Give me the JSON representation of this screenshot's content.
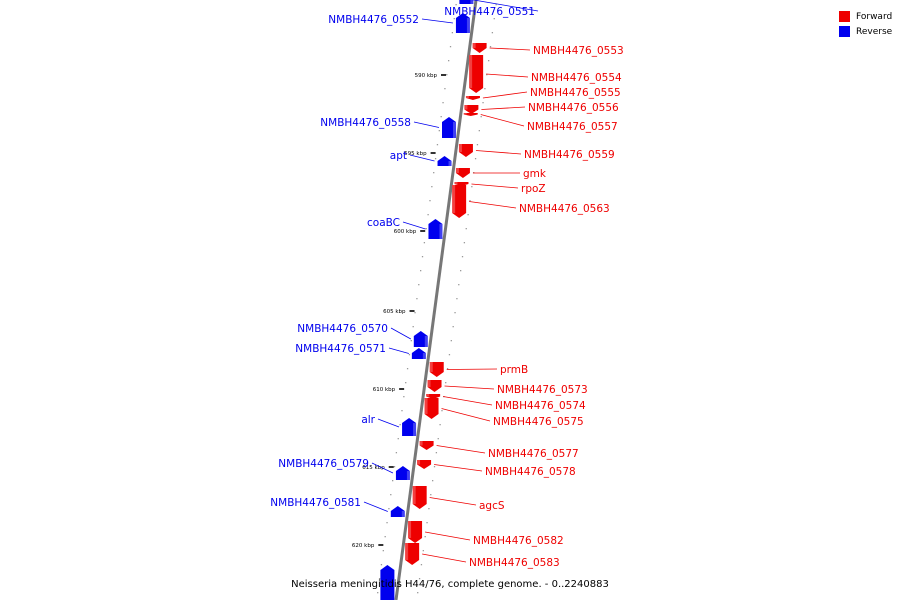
{
  "caption": "Neisseria meningitidis H44/76, complete genome. - 0..2240883",
  "legend": [
    {
      "label": "Forward",
      "color": "#ee0000"
    },
    {
      "label": "Reverse",
      "color": "#0000ee"
    }
  ],
  "colors": {
    "forward": "#ee0000",
    "reverse": "#0000ee",
    "backbone": "#777777"
  },
  "ticks": [
    "590 kbp",
    "595 kbp",
    "600 kbp",
    "605 kbp",
    "610 kbp",
    "615 kbp",
    "620 kbp"
  ],
  "genes": [
    {
      "label": "NMBH4476_0551",
      "strand": "reverse"
    },
    {
      "label": "NMBH4476_0552",
      "strand": "reverse"
    },
    {
      "label": "NMBH4476_0553",
      "strand": "forward"
    },
    {
      "label": "NMBH4476_0554",
      "strand": "forward"
    },
    {
      "label": "NMBH4476_0555",
      "strand": "forward"
    },
    {
      "label": "NMBH4476_0556",
      "strand": "forward"
    },
    {
      "label": "NMBH4476_0557",
      "strand": "forward"
    },
    {
      "label": "NMBH4476_0558",
      "strand": "reverse"
    },
    {
      "label": "apt",
      "strand": "reverse"
    },
    {
      "label": "NMBH4476_0559",
      "strand": "forward"
    },
    {
      "label": "gmk",
      "strand": "forward"
    },
    {
      "label": "rpoZ",
      "strand": "forward"
    },
    {
      "label": "NMBH4476_0563",
      "strand": "forward"
    },
    {
      "label": "coaBC",
      "strand": "reverse"
    },
    {
      "label": "NMBH4476_0570",
      "strand": "reverse"
    },
    {
      "label": "NMBH4476_0571",
      "strand": "reverse"
    },
    {
      "label": "prmB",
      "strand": "forward"
    },
    {
      "label": "NMBH4476_0573",
      "strand": "forward"
    },
    {
      "label": "NMBH4476_0574",
      "strand": "forward"
    },
    {
      "label": "NMBH4476_0575",
      "strand": "forward"
    },
    {
      "label": "alr",
      "strand": "reverse"
    },
    {
      "label": "NMBH4476_0577",
      "strand": "forward"
    },
    {
      "label": "NMBH4476_0578",
      "strand": "forward"
    },
    {
      "label": "NMBH4476_0579",
      "strand": "reverse"
    },
    {
      "label": "agcS",
      "strand": "forward"
    },
    {
      "label": "NMBH4476_0581",
      "strand": "reverse"
    },
    {
      "label": "NMBH4476_0582",
      "strand": "forward"
    },
    {
      "label": "NMBH4476_0583",
      "strand": "forward"
    }
  ]
}
